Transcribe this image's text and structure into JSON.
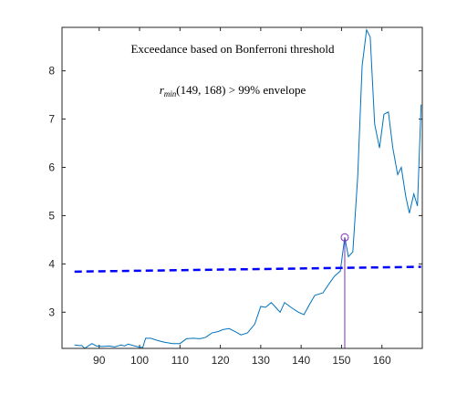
{
  "chart_data": {
    "type": "line",
    "title": "Exceedance based on Bonferroni threshold",
    "annotation": {
      "symbol": "r",
      "subscript": "min",
      "text": "(149, 168) > 99% envelope"
    },
    "xlim": [
      80.8,
      170
    ],
    "ylim": [
      2.25,
      8.9
    ],
    "xticks": [
      90,
      100,
      110,
      120,
      130,
      140,
      150,
      160
    ],
    "yticks": [
      3,
      4,
      5,
      6,
      7,
      8
    ],
    "series": [
      {
        "color": "#0072bd",
        "style": "solid",
        "x": [
          83.9,
          85,
          85.7,
          86.4,
          87.3,
          88.2,
          89.3,
          90.7,
          92.5,
          93.8,
          95.4,
          96.3,
          97.2,
          98.8,
          99.7,
          100.8,
          101.5,
          102.8,
          104.2,
          106,
          108.2,
          110,
          111.6,
          113.2,
          115,
          116.4,
          117.9,
          119.5,
          120.6,
          122.2,
          123.6,
          125.1,
          126.7,
          128.5,
          130,
          131.2,
          132.6,
          133.7,
          134.8,
          135.9,
          137.5,
          139.3,
          140.7,
          142,
          143.4,
          145.4,
          147,
          148.3,
          149.7,
          150.8,
          151.7,
          152.8,
          154,
          155.1,
          156.2,
          157.1,
          158.2,
          159.4,
          160.5,
          161.6,
          162.7,
          163.9,
          164.8,
          165.9,
          166.8,
          167.9,
          168.8,
          169.7
        ],
        "values": [
          2.32,
          2.31,
          2.31,
          2.25,
          2.3,
          2.35,
          2.3,
          2.29,
          2.3,
          2.28,
          2.32,
          2.3,
          2.34,
          2.3,
          2.28,
          2.27,
          2.46,
          2.46,
          2.42,
          2.38,
          2.35,
          2.35,
          2.45,
          2.46,
          2.45,
          2.48,
          2.57,
          2.6,
          2.64,
          2.66,
          2.6,
          2.53,
          2.57,
          2.75,
          3.12,
          3.1,
          3.2,
          3.1,
          3.0,
          3.2,
          3.1,
          3.0,
          2.95,
          3.15,
          3.35,
          3.4,
          3.6,
          3.75,
          3.85,
          4.55,
          4.15,
          4.25,
          5.8,
          8.1,
          8.85,
          8.7,
          6.9,
          6.4,
          7.1,
          7.15,
          6.4,
          5.85,
          6.0,
          5.4,
          5.05,
          5.45,
          5.2,
          7.3
        ]
      },
      {
        "color": "#0000ff",
        "style": "dashed",
        "x": [
          83.9,
          169.7
        ],
        "values": [
          3.84,
          3.94
        ]
      }
    ],
    "stem": {
      "color": "#7e2fbe",
      "x": 150.8,
      "value": 4.55
    }
  }
}
